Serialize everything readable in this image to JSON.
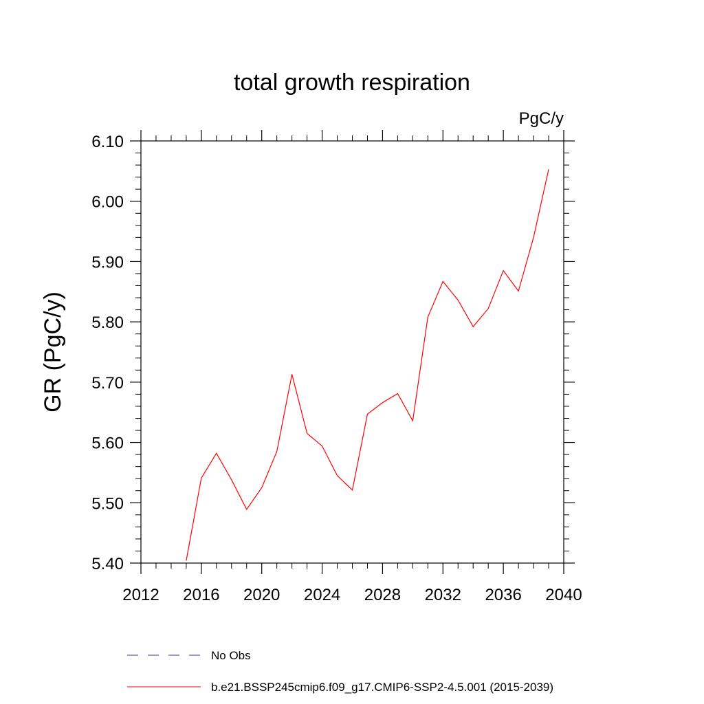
{
  "chart_data": {
    "type": "line",
    "title": "total growth respiration",
    "units": "PgC/y",
    "ylabel": "GR  (PgC/y)",
    "xlabel": "",
    "xlim": [
      2012,
      2040
    ],
    "ylim": [
      5.4,
      6.1
    ],
    "x_ticks": [
      "2012",
      "2016",
      "2020",
      "2024",
      "2028",
      "2032",
      "2036",
      "2040"
    ],
    "y_ticks": [
      "5.40",
      "5.50",
      "5.60",
      "5.70",
      "5.80",
      "5.90",
      "6.00",
      "6.10"
    ],
    "grid": false,
    "legend_position": "bottom",
    "series": [
      {
        "name": "No Obs",
        "color": "#3030b0",
        "dash": "dashed",
        "x": [],
        "y": []
      },
      {
        "name": "b.e21.BSSP245cmip6.f09_g17.CMIP6-SSP2-4.5.001 (2015-2039)",
        "color": "#ff0000",
        "dash": "solid",
        "x": [
          2015,
          2016,
          2017,
          2018,
          2019,
          2020,
          2021,
          2022,
          2023,
          2024,
          2025,
          2026,
          2027,
          2028,
          2029,
          2030,
          2031,
          2032,
          2033,
          2034,
          2035,
          2036,
          2037,
          2038,
          2039
        ],
        "y": [
          5.404,
          5.541,
          5.582,
          5.538,
          5.489,
          5.525,
          5.585,
          5.713,
          5.615,
          5.594,
          5.545,
          5.521,
          5.647,
          5.666,
          5.681,
          5.636,
          5.808,
          5.867,
          5.836,
          5.792,
          5.822,
          5.885,
          5.851,
          5.94,
          6.053
        ]
      }
    ]
  }
}
